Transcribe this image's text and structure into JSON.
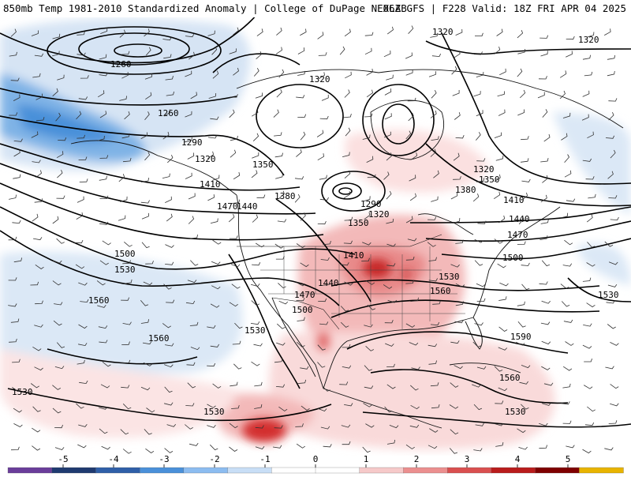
{
  "header": {
    "left": "850mb Temp 1981-2010 Standardized Anomaly | College of DuPage NEXLAB",
    "right": "06Z GFS | F228 Valid: 18Z FRI APR 04 2025"
  },
  "contour_labels": [
    "1260",
    "1260",
    "1290",
    "1320",
    "1350",
    "1320",
    "1320",
    "1320",
    "1410",
    "1470",
    "1440",
    "1380",
    "1290",
    "1320",
    "1350",
    "1320",
    "1350",
    "1380",
    "1410",
    "1440",
    "1470",
    "1500",
    "1500",
    "1530",
    "1560",
    "1410",
    "1440",
    "1470",
    "1500",
    "1530",
    "1560",
    "1530",
    "1590",
    "1560",
    "1530",
    "1530",
    "1560",
    "1530"
  ],
  "legend": {
    "ticks": [
      "-5",
      "-4",
      "-3",
      "-2",
      "-1",
      "0",
      "1",
      "2",
      "3",
      "4",
      "5"
    ],
    "colors": [
      "#6a3d9a",
      "#1f3a70",
      "#2f5fa8",
      "#4a90d9",
      "#8cbcf0",
      "#c8def6",
      "#ffffff",
      "#ffffff",
      "#f6c9c9",
      "#eb8f8f",
      "#d94f4f",
      "#b91c1c",
      "#7f0000",
      "#e8b400"
    ]
  }
}
